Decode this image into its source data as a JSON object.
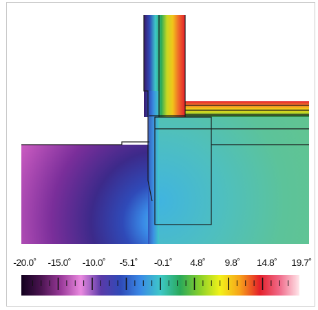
{
  "legend": {
    "labels": [
      "-20.0˚",
      "-15.0˚",
      "-10.0˚",
      "-5.1˚",
      "-0.1˚",
      "4.8˚",
      "9.8˚",
      "14.8˚",
      "19.7˚"
    ],
    "gradient_colors": [
      "#12001e",
      "#4a1450",
      "#9a3a9a",
      "#ea8ae0",
      "#5a3aa8",
      "#2f4ab8",
      "#3a8ae6",
      "#3ec8c8",
      "#2aa95a",
      "#8ad02a",
      "#f2f21a",
      "#f7a21a",
      "#e4202a",
      "#f06b8a",
      "#ffe6ea"
    ],
    "major_tick_positions": [
      0.0,
      0.125,
      0.25,
      0.375,
      0.5,
      0.625,
      0.75,
      0.875,
      1.0
    ]
  },
  "simulation": {
    "region_colors": {
      "exterior_air": "#ffffff",
      "ground_cold": "#3c2a8a",
      "ground_mid": "#6a3aaa",
      "ground_warm": "#c060c8",
      "slab_cool": "#4ab8d8",
      "slab_warm": "#5ec2a0",
      "wall_gradient": [
        "#3a1a6a",
        "#2f4ab8",
        "#3ec8c8",
        "#2aa95a",
        "#c8d822",
        "#f2c41a",
        "#ef6a2a",
        "#e4202a"
      ]
    }
  }
}
